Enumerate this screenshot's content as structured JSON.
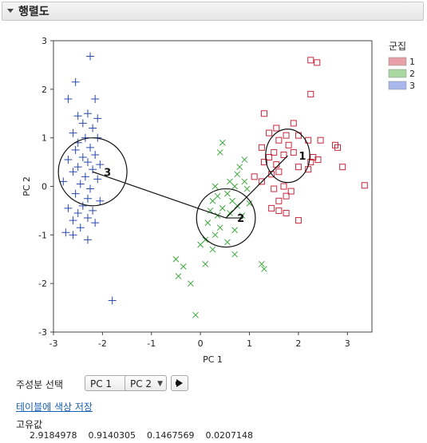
{
  "outline_title": "행렬도",
  "legend": {
    "title": "군집",
    "items": [
      {
        "label": "1",
        "color": "#e8a0a8"
      },
      {
        "label": "2",
        "color": "#a8d8a0"
      },
      {
        "label": "3",
        "color": "#a8b8ec"
      }
    ]
  },
  "controls": {
    "pc_select_label": "주성분 선택",
    "x_select": "PC 1",
    "y_select": "PC 2",
    "go_icon": "right-arrow-icon"
  },
  "save_colors_link": "테이블에 색상 저장",
  "eigenvalues": {
    "label": "고유값",
    "values": [
      "2.9184978",
      "0.9140305",
      "0.1467569",
      "0.0207148"
    ]
  },
  "colors": {
    "cluster1_stroke": "#c8283c",
    "cluster2_stroke": "#3aa83a",
    "cluster3_stroke": "#2a48b0"
  },
  "chart_data": {
    "type": "scatter",
    "xlabel": "PC 1",
    "ylabel": "PC 2",
    "xlim": [
      -3,
      3.5
    ],
    "ylim": [
      -3,
      3
    ],
    "xticks": [
      "-3",
      "-2",
      "-1",
      "0",
      "1",
      "2",
      "3"
    ],
    "yticks": [
      "-3",
      "-2",
      "-1",
      "0",
      "1",
      "2",
      "3"
    ],
    "legend_position": "top-right",
    "series": [
      {
        "name": "1",
        "marker": "square",
        "ellipse": {
          "cx": 1.78,
          "cy": 0.63,
          "rx": 1.0,
          "ry": 0.95
        },
        "circle": {
          "cx": 1.78,
          "cy": 0.63,
          "rx": 0.45,
          "ry": 0.55
        },
        "center_label": "1",
        "points": [
          [
            2.25,
            2.6
          ],
          [
            2.38,
            2.55
          ],
          [
            2.25,
            1.9
          ],
          [
            1.3,
            1.5
          ],
          [
            1.9,
            1.3
          ],
          [
            1.55,
            1.2
          ],
          [
            1.75,
            1.05
          ],
          [
            1.4,
            1.1
          ],
          [
            2.0,
            1.05
          ],
          [
            1.6,
            0.95
          ],
          [
            2.2,
            0.95
          ],
          [
            2.45,
            0.95
          ],
          [
            2.75,
            0.85
          ],
          [
            2.8,
            0.8
          ],
          [
            1.8,
            0.85
          ],
          [
            1.25,
            0.8
          ],
          [
            1.5,
            0.7
          ],
          [
            1.7,
            0.65
          ],
          [
            1.9,
            0.7
          ],
          [
            2.3,
            0.6
          ],
          [
            2.4,
            0.55
          ],
          [
            2.25,
            0.5
          ],
          [
            1.4,
            0.6
          ],
          [
            1.3,
            0.5
          ],
          [
            1.55,
            0.45
          ],
          [
            2.0,
            0.4
          ],
          [
            2.2,
            0.35
          ],
          [
            1.6,
            0.3
          ],
          [
            1.45,
            0.25
          ],
          [
            2.9,
            0.4
          ],
          [
            3.35,
            0.02
          ],
          [
            1.1,
            0.2
          ],
          [
            1.25,
            0.1
          ],
          [
            1.7,
            0.0
          ],
          [
            1.5,
            -0.05
          ],
          [
            1.85,
            -0.1
          ],
          [
            1.75,
            -0.2
          ],
          [
            1.6,
            -0.3
          ],
          [
            1.45,
            -0.45
          ],
          [
            1.6,
            -0.5
          ],
          [
            1.75,
            -0.55
          ],
          [
            2.0,
            -0.7
          ]
        ]
      },
      {
        "name": "2",
        "marker": "x",
        "ellipse": {
          "cx": 0.52,
          "cy": -0.65,
          "rx": 0.88,
          "ry": 1.0
        },
        "circle": {
          "cx": 0.52,
          "cy": -0.65,
          "rx": 0.6,
          "ry": 0.6
        },
        "center_label": "2",
        "points": [
          [
            0.45,
            0.9
          ],
          [
            0.4,
            0.7
          ],
          [
            0.9,
            0.55
          ],
          [
            0.8,
            0.4
          ],
          [
            0.75,
            0.25
          ],
          [
            0.9,
            0.1
          ],
          [
            0.6,
            0.1
          ],
          [
            0.3,
            0.0
          ],
          [
            0.7,
            0.0
          ],
          [
            0.95,
            -0.05
          ],
          [
            0.55,
            -0.15
          ],
          [
            0.35,
            -0.2
          ],
          [
            0.25,
            -0.3
          ],
          [
            0.65,
            -0.3
          ],
          [
            0.75,
            -0.4
          ],
          [
            0.45,
            -0.45
          ],
          [
            0.2,
            -0.5
          ],
          [
            0.6,
            -0.55
          ],
          [
            0.35,
            -0.6
          ],
          [
            0.85,
            -0.6
          ],
          [
            1.0,
            -0.35
          ],
          [
            0.15,
            -0.75
          ],
          [
            0.4,
            -0.85
          ],
          [
            0.7,
            -0.9
          ],
          [
            0.3,
            -1.0
          ],
          [
            0.1,
            -1.1
          ],
          [
            0.55,
            -1.15
          ],
          [
            0.0,
            -1.2
          ],
          [
            0.25,
            -1.3
          ],
          [
            0.7,
            -1.4
          ],
          [
            -0.5,
            -1.5
          ],
          [
            -0.35,
            -1.65
          ],
          [
            0.1,
            -1.6
          ],
          [
            -0.45,
            -1.85
          ],
          [
            -0.2,
            -2.0
          ],
          [
            1.25,
            -1.6
          ],
          [
            1.3,
            -1.7
          ],
          [
            -0.1,
            -2.65
          ]
        ]
      },
      {
        "name": "3",
        "marker": "plus",
        "ellipse": {
          "cx": -2.2,
          "cy": 0.3,
          "rx": 0.72,
          "ry": 1.45
        },
        "circle": {
          "cx": -2.2,
          "cy": 0.3,
          "rx": 0.7,
          "ry": 0.7
        },
        "center_label": "3",
        "points": [
          [
            -2.25,
            2.68
          ],
          [
            -2.55,
            2.15
          ],
          [
            -2.15,
            1.8
          ],
          [
            -2.7,
            1.8
          ],
          [
            -2.3,
            1.5
          ],
          [
            -2.5,
            1.45
          ],
          [
            -2.1,
            1.4
          ],
          [
            -2.4,
            1.3
          ],
          [
            -2.2,
            1.2
          ],
          [
            -2.6,
            1.1
          ],
          [
            -2.35,
            1.0
          ],
          [
            -2.1,
            1.0
          ],
          [
            -2.5,
            0.9
          ],
          [
            -2.25,
            0.8
          ],
          [
            -2.55,
            0.75
          ],
          [
            -2.15,
            0.65
          ],
          [
            -2.4,
            0.6
          ],
          [
            -2.7,
            0.55
          ],
          [
            -2.3,
            0.5
          ],
          [
            -2.05,
            0.45
          ],
          [
            -2.5,
            0.4
          ],
          [
            -2.2,
            0.35
          ],
          [
            -2.6,
            0.3
          ],
          [
            -2.35,
            0.2
          ],
          [
            -2.1,
            0.15
          ],
          [
            -2.8,
            0.1
          ],
          [
            -2.45,
            0.05
          ],
          [
            -2.25,
            -0.05
          ],
          [
            -2.55,
            -0.15
          ],
          [
            -2.3,
            -0.25
          ],
          [
            -2.05,
            -0.3
          ],
          [
            -2.4,
            -0.4
          ],
          [
            -2.7,
            -0.45
          ],
          [
            -2.2,
            -0.5
          ],
          [
            -2.5,
            -0.55
          ],
          [
            -2.3,
            -0.65
          ],
          [
            -2.6,
            -0.7
          ],
          [
            -2.15,
            -0.75
          ],
          [
            -2.45,
            -0.85
          ],
          [
            -2.75,
            -0.95
          ],
          [
            -2.6,
            -1.0
          ],
          [
            -2.3,
            -1.1
          ],
          [
            -1.8,
            -2.35
          ]
        ]
      }
    ]
  }
}
